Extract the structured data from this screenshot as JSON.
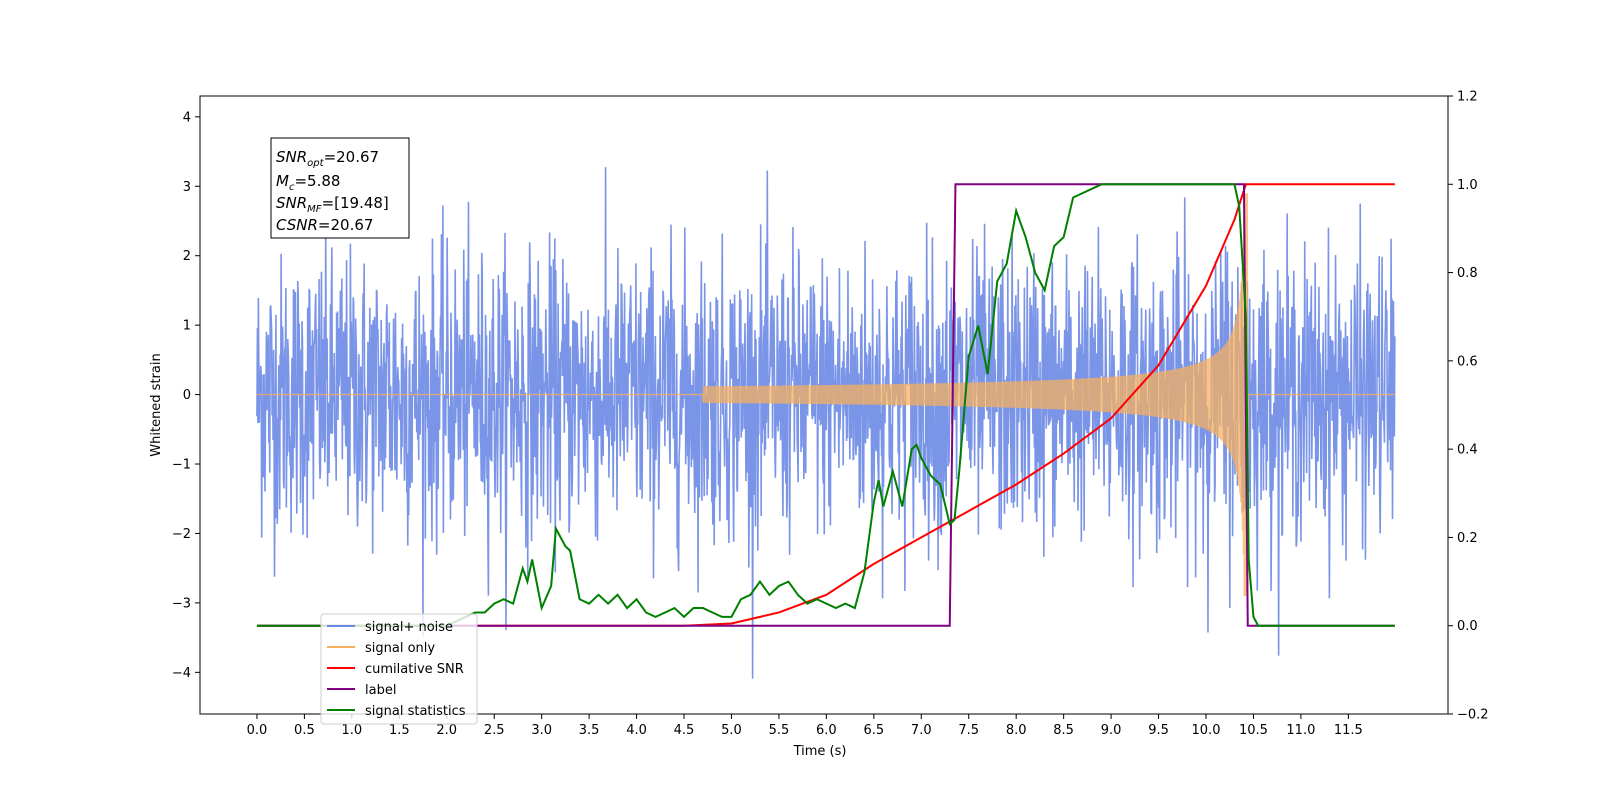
{
  "chart_data": {
    "type": "line",
    "xlabel": "Time (s)",
    "ylabel": "Whitened strain",
    "xlim": [
      -0.6,
      12.55
    ],
    "ylim": [
      -4.6,
      4.3
    ],
    "y2lim": [
      -0.2,
      1.2
    ],
    "x_ticks": [
      "0.0",
      "0.5",
      "1.0",
      "1.5",
      "2.0",
      "2.5",
      "3.0",
      "3.5",
      "4.0",
      "4.5",
      "5.0",
      "5.5",
      "6.0",
      "6.5",
      "7.0",
      "7.5",
      "8.0",
      "8.5",
      "9.0",
      "9.5",
      "10.0",
      "10.5",
      "11.0",
      "11.5"
    ],
    "y_ticks": [
      "4",
      "3",
      "2",
      "1",
      "0",
      "−1",
      "−2",
      "−3",
      "−4"
    ],
    "y2_ticks": [
      "1.2",
      "1.0",
      "0.8",
      "0.6",
      "0.4",
      "0.2",
      "0.0",
      "−0.2"
    ],
    "colors": {
      "noise": "#6b8ae6",
      "signal": "#f5b060",
      "cumulative_snr": "#ff0000",
      "label": "#800080",
      "statistics": "#008000"
    },
    "annotation": {
      "snr_opt": "20.67",
      "mc": "5.88",
      "snr_mf": "[19.48]",
      "csnr": "20.67"
    },
    "legend": {
      "placement": "lower-left",
      "entries": [
        "signal+ noise",
        "signal only",
        "cumilative SNR",
        "label",
        "signal statistics"
      ]
    },
    "series": [
      {
        "name": "signal+ noise",
        "description_kind": "dense random noise, amplitude about 1.5–2.5, sampled 0–12 s"
      },
      {
        "name": "signal only",
        "chirp": {
          "t_start": 4.7,
          "t_merge": 10.42,
          "amplitude_start": 0.02,
          "amplitude_end": 2.9
        }
      },
      {
        "name": "cumilative SNR",
        "x": [
          0.0,
          4.5,
          5.0,
          5.5,
          6.0,
          6.5,
          7.0,
          7.5,
          8.0,
          8.5,
          9.0,
          9.5,
          10.0,
          10.3,
          10.42,
          10.5,
          11.0,
          11.5,
          11.99
        ],
        "y": [
          0.0,
          0.0,
          0.005,
          0.03,
          0.07,
          0.14,
          0.2,
          0.26,
          0.32,
          0.39,
          0.47,
          0.59,
          0.77,
          0.92,
          1.0,
          1.0,
          1.0,
          1.0,
          1.0
        ]
      },
      {
        "name": "label",
        "x": [
          0.0,
          7.3,
          7.36,
          10.4,
          10.44,
          11.99
        ],
        "y": [
          0.0,
          0.0,
          1.0,
          1.0,
          0.0,
          0.0
        ]
      },
      {
        "name": "signal statistics",
        "x": [
          0.0,
          2.0,
          2.2,
          2.3,
          2.4,
          2.5,
          2.6,
          2.7,
          2.8,
          2.85,
          2.9,
          3.0,
          3.1,
          3.15,
          3.25,
          3.3,
          3.4,
          3.5,
          3.6,
          3.7,
          3.8,
          3.9,
          4.0,
          4.1,
          4.2,
          4.3,
          4.4,
          4.5,
          4.6,
          4.7,
          4.8,
          4.9,
          5.0,
          5.1,
          5.2,
          5.3,
          5.4,
          5.5,
          5.6,
          5.7,
          5.8,
          5.9,
          6.0,
          6.1,
          6.2,
          6.3,
          6.4,
          6.5,
          6.55,
          6.6,
          6.7,
          6.8,
          6.9,
          6.95,
          7.0,
          7.1,
          7.2,
          7.3,
          7.35,
          7.4,
          7.5,
          7.6,
          7.7,
          7.8,
          7.9,
          8.0,
          8.1,
          8.2,
          8.3,
          8.4,
          8.5,
          8.6,
          8.7,
          8.8,
          8.9,
          9.0,
          10.3,
          10.35,
          10.42,
          10.45,
          10.5,
          10.55,
          11.99
        ],
        "y": [
          0.0,
          0.0,
          0.02,
          0.03,
          0.03,
          0.05,
          0.06,
          0.05,
          0.13,
          0.1,
          0.15,
          0.04,
          0.09,
          0.22,
          0.18,
          0.17,
          0.06,
          0.05,
          0.07,
          0.05,
          0.07,
          0.04,
          0.06,
          0.03,
          0.02,
          0.03,
          0.04,
          0.02,
          0.04,
          0.04,
          0.03,
          0.02,
          0.02,
          0.06,
          0.07,
          0.1,
          0.07,
          0.09,
          0.1,
          0.07,
          0.05,
          0.06,
          0.05,
          0.04,
          0.05,
          0.04,
          0.12,
          0.28,
          0.33,
          0.27,
          0.35,
          0.27,
          0.4,
          0.41,
          0.38,
          0.34,
          0.32,
          0.23,
          0.24,
          0.35,
          0.61,
          0.68,
          0.57,
          0.78,
          0.82,
          0.94,
          0.88,
          0.8,
          0.76,
          0.86,
          0.88,
          0.97,
          0.98,
          0.99,
          1.0,
          1.0,
          1.0,
          0.95,
          0.7,
          0.15,
          0.02,
          0.0,
          0.0
        ]
      }
    ]
  }
}
